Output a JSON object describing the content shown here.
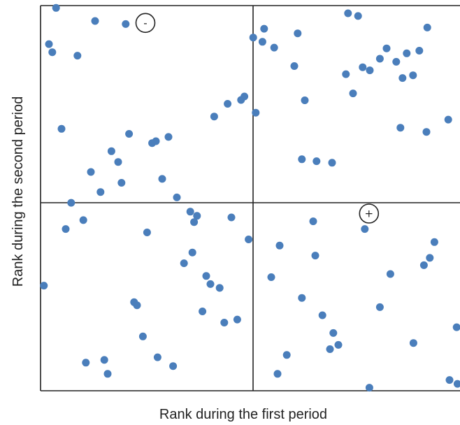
{
  "chart_data": {
    "type": "scatter",
    "title": "",
    "xlabel": "Rank during the first period",
    "ylabel": "Rank during the second period",
    "xlim": [
      0,
      100
    ],
    "ylim": [
      0,
      100
    ],
    "grid": false,
    "legend": "none",
    "point_color": "#4a7ebb",
    "quadrant_labels": [
      {
        "text": "-",
        "x": 25,
        "y": 95.5
      },
      {
        "text": "+",
        "x": 78.3,
        "y": 46.0
      }
    ],
    "points": [
      [
        3.7,
        99.4
      ],
      [
        13.0,
        96.0
      ],
      [
        20.3,
        95.2
      ],
      [
        2.0,
        90.0
      ],
      [
        2.8,
        87.9
      ],
      [
        8.8,
        87.0
      ],
      [
        5.0,
        68.0
      ],
      [
        21.1,
        66.7
      ],
      [
        26.6,
        64.3
      ],
      [
        27.5,
        64.8
      ],
      [
        30.5,
        65.9
      ],
      [
        16.9,
        62.2
      ],
      [
        18.5,
        59.4
      ],
      [
        12.0,
        56.8
      ],
      [
        19.3,
        54.0
      ],
      [
        14.3,
        51.6
      ],
      [
        29.0,
        55.0
      ],
      [
        32.5,
        50.2
      ],
      [
        7.3,
        48.8
      ],
      [
        35.7,
        46.5
      ],
      [
        37.3,
        45.4
      ],
      [
        10.2,
        44.3
      ],
      [
        45.5,
        45.0
      ],
      [
        6.0,
        42.0
      ],
      [
        25.4,
        41.1
      ],
      [
        49.6,
        39.3
      ],
      [
        36.6,
        43.8
      ],
      [
        36.2,
        35.9
      ],
      [
        34.2,
        33.1
      ],
      [
        0.8,
        27.3
      ],
      [
        39.5,
        29.8
      ],
      [
        40.5,
        27.7
      ],
      [
        42.7,
        26.7
      ],
      [
        22.3,
        23.0
      ],
      [
        23.0,
        22.2
      ],
      [
        38.6,
        20.6
      ],
      [
        43.8,
        17.7
      ],
      [
        46.9,
        18.5
      ],
      [
        24.4,
        14.1
      ],
      [
        27.9,
        8.7
      ],
      [
        31.6,
        6.4
      ],
      [
        10.8,
        7.3
      ],
      [
        15.2,
        8.0
      ],
      [
        16.0,
        4.4
      ],
      [
        41.4,
        71.2
      ],
      [
        44.6,
        74.5
      ],
      [
        47.8,
        75.5
      ],
      [
        48.6,
        76.4
      ],
      [
        51.3,
        72.2
      ],
      [
        50.7,
        91.7
      ],
      [
        52.9,
        90.6
      ],
      [
        53.3,
        94.0
      ],
      [
        55.7,
        89.1
      ],
      [
        60.5,
        84.3
      ],
      [
        61.3,
        92.8
      ],
      [
        63.0,
        75.4
      ],
      [
        62.3,
        60.1
      ],
      [
        65.0,
        44.0
      ],
      [
        69.5,
        59.2
      ],
      [
        65.8,
        59.6
      ],
      [
        73.3,
        98.0
      ],
      [
        75.7,
        97.3
      ],
      [
        72.8,
        82.2
      ],
      [
        74.5,
        77.2
      ],
      [
        76.8,
        84.0
      ],
      [
        78.5,
        83.2
      ],
      [
        80.9,
        86.2
      ],
      [
        82.5,
        88.9
      ],
      [
        84.8,
        85.4
      ],
      [
        86.3,
        81.2
      ],
      [
        87.3,
        87.6
      ],
      [
        90.3,
        88.3
      ],
      [
        92.2,
        94.3
      ],
      [
        88.8,
        81.9
      ],
      [
        85.8,
        68.3
      ],
      [
        92.0,
        67.2
      ],
      [
        97.2,
        70.4
      ],
      [
        77.3,
        42.0
      ],
      [
        57.0,
        37.7
      ],
      [
        65.5,
        35.1
      ],
      [
        55.0,
        29.5
      ],
      [
        62.3,
        24.1
      ],
      [
        91.4,
        32.6
      ],
      [
        92.8,
        34.5
      ],
      [
        93.9,
        38.6
      ],
      [
        83.4,
        30.3
      ],
      [
        80.9,
        21.7
      ],
      [
        67.2,
        19.6
      ],
      [
        69.8,
        15.0
      ],
      [
        71.0,
        11.9
      ],
      [
        69.0,
        10.8
      ],
      [
        88.9,
        12.4
      ],
      [
        58.7,
        9.3
      ],
      [
        56.5,
        4.4
      ],
      [
        78.4,
        0.8
      ],
      [
        97.5,
        2.8
      ],
      [
        99.4,
        1.8
      ],
      [
        99.2,
        16.5
      ]
    ]
  }
}
